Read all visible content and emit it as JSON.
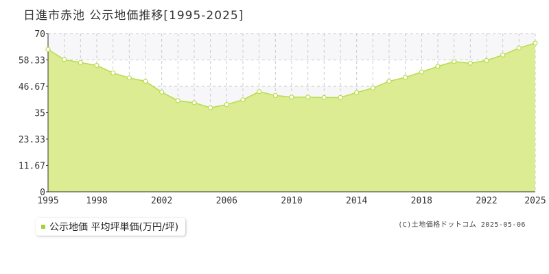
{
  "title": "日進市赤池 公示地価推移[1995-2025]",
  "legend_label": "公示地価 平均坪単価(万円/坪)",
  "credit": "(C)土地価格ドットコム 2025-05-06",
  "colors": {
    "area_fill": "#dbec93",
    "area_line": "#b8dc4a",
    "point_fill": "#ffffff",
    "band_fill": "#f7f7f9",
    "grid": "#c8c8c8",
    "legend_swatch": "#a7cf3a"
  },
  "chart_data": {
    "type": "area",
    "title": "日進市赤池 公示地価推移[1995-2025]",
    "xlabel": "",
    "ylabel": "",
    "xlim": [
      1995,
      2025
    ],
    "ylim": [
      0,
      70
    ],
    "yticks": [
      0,
      11.67,
      23.33,
      35,
      46.67,
      58.33,
      70
    ],
    "ytick_labels": [
      "0",
      "11.67",
      "23.33",
      "35",
      "46.67",
      "58.33",
      "70"
    ],
    "xticks": [
      1995,
      1998,
      2002,
      2006,
      2010,
      2014,
      2018,
      2022,
      2025
    ],
    "xtick_labels": [
      "1995",
      "1998",
      "2002",
      "2006",
      "2010",
      "2014",
      "2018",
      "2022",
      "2025"
    ],
    "grid": true,
    "legend_position": "bottom-left",
    "series": [
      {
        "name": "公示地価 平均坪単価(万円/坪)",
        "x": [
          1995,
          1996,
          1997,
          1998,
          1999,
          2000,
          2001,
          2002,
          2003,
          2004,
          2005,
          2006,
          2007,
          2008,
          2009,
          2010,
          2011,
          2012,
          2013,
          2014,
          2015,
          2016,
          2017,
          2018,
          2019,
          2020,
          2021,
          2022,
          2023,
          2024,
          2025
        ],
        "y": [
          63.0,
          58.5,
          57.2,
          55.9,
          52.6,
          50.4,
          48.9,
          44.1,
          40.3,
          39.4,
          37.2,
          38.6,
          40.7,
          44.3,
          42.6,
          41.9,
          41.9,
          41.7,
          41.7,
          43.9,
          45.9,
          48.9,
          50.6,
          53.0,
          55.5,
          57.6,
          56.9,
          58.1,
          60.5,
          63.6,
          65.8
        ]
      }
    ]
  }
}
